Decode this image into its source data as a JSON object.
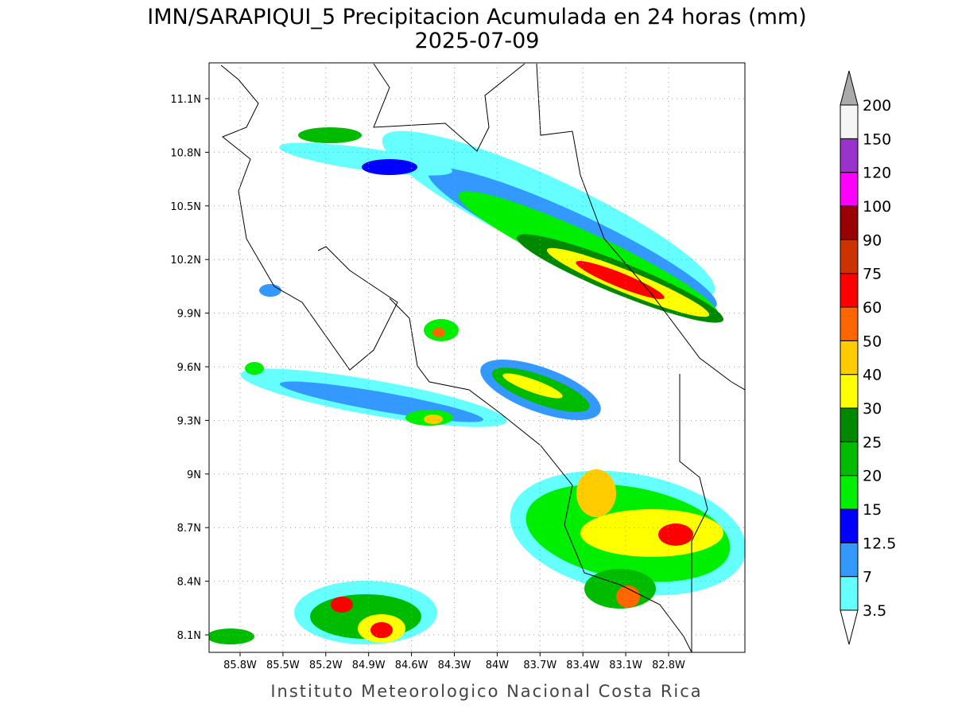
{
  "title": "IMN/SARAPIQUI_5 Precipitacion Acumulada en 24 horas (mm)",
  "subtitle": "2025-07-09",
  "map": {
    "lat_ticks": [
      "11.1N",
      "10.8N",
      "10.5N",
      "10.2N",
      "9.9N",
      "9.6N",
      "9.3N",
      "9N",
      "8.7N",
      "8.4N",
      "8.1N"
    ],
    "lon_ticks": [
      "85.8W",
      "85.5W",
      "85.2W",
      "84.9W",
      "84.6W",
      "84.3W",
      "84W",
      "83.7W",
      "83.4W",
      "83.1W",
      "82.8W"
    ]
  },
  "colorbar": {
    "labels": [
      "3.5",
      "7",
      "12.5",
      "15",
      "20",
      "25",
      "30",
      "40",
      "50",
      "60",
      "75",
      "90",
      "100",
      "120",
      "150",
      "200"
    ],
    "colors": [
      "#ffffff",
      "#66ffff",
      "#3399ff",
      "#0000ff",
      "#00ee00",
      "#00bb00",
      "#008800",
      "#ffff00",
      "#ffcc00",
      "#ff6600",
      "#ff0000",
      "#cc3300",
      "#990000",
      "#ff00ff",
      "#9933cc",
      "#f5f5f5",
      "#aaaaaa"
    ]
  },
  "footer": "Instituto Meteorologico Nacional Costa Rica"
}
